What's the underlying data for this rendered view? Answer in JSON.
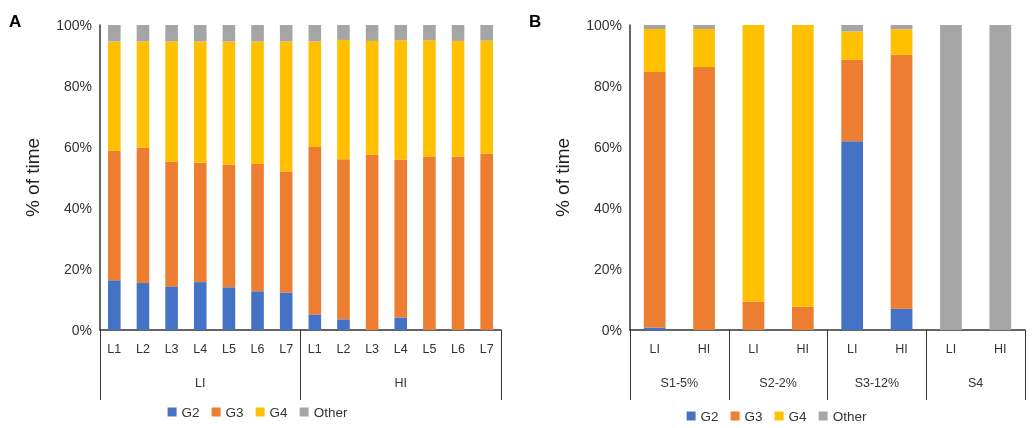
{
  "chart_data": [
    {
      "type": "bar",
      "title": "A",
      "ylabel": "% of time",
      "stacked": true,
      "legend": "bottom",
      "grid": false,
      "categories": [
        "L1",
        "L2",
        "L3",
        "L4",
        "L5",
        "L6",
        "L7",
        "L1",
        "L2",
        "L3",
        "L4",
        "L5",
        "L6",
        "L7"
      ],
      "annotations": [
        "LI",
        "HI"
      ],
      "ylim": [
        0,
        100
      ],
      "yticks": [
        {
          "value": 0,
          "label": "0%"
        },
        {
          "value": 20,
          "label": "20%"
        },
        {
          "value": 40,
          "label": "40%"
        },
        {
          "value": 60,
          "label": "60%"
        },
        {
          "value": 80,
          "label": "80%"
        },
        {
          "value": 100,
          "label": "100%"
        }
      ],
      "series": [
        {
          "name": "G2",
          "color": "#4472c4",
          "values": [
            16.3,
            15.4,
            14.3,
            15.7,
            14.0,
            12.7,
            12.3,
            5.1,
            3.5,
            0,
            4.1,
            0,
            0,
            0
          ]
        },
        {
          "name": "G3",
          "color": "#ed7d31",
          "values": [
            42.5,
            44.4,
            40.9,
            39.1,
            40.2,
            41.7,
            39.7,
            54.9,
            52.5,
            57.5,
            51.8,
            56.9,
            56.8,
            57.9
          ]
        },
        {
          "name": "G4",
          "color": "#ffc000",
          "values": [
            35.8,
            34.8,
            39.4,
            39.8,
            40.4,
            40.2,
            42.6,
            34.6,
            39.1,
            37.3,
            39.1,
            38.1,
            38.0,
            37.0
          ]
        },
        {
          "name": "Other",
          "color": "#a5a5a5",
          "values": [
            5.4,
            5.4,
            5.4,
            5.4,
            5.4,
            5.4,
            5.4,
            5.4,
            4.9,
            5.2,
            5.0,
            5.0,
            5.2,
            5.1
          ]
        }
      ]
    },
    {
      "type": "bar",
      "title": "B",
      "ylabel": "% of time",
      "stacked": true,
      "legend": "bottom",
      "grid": false,
      "categories": [
        "LI",
        "HI",
        "LI",
        "HI",
        "LI",
        "HI",
        "LI",
        "HI"
      ],
      "annotations": [
        "S1-5%",
        "S2-2%",
        "S3-12%",
        "S4"
      ],
      "ylim": [
        0,
        100
      ],
      "yticks": [
        {
          "value": 0,
          "label": "0%"
        },
        {
          "value": 20,
          "label": "20%"
        },
        {
          "value": 40,
          "label": "40%"
        },
        {
          "value": 60,
          "label": "60%"
        },
        {
          "value": 80,
          "label": "80%"
        },
        {
          "value": 100,
          "label": "100%"
        }
      ],
      "series": [
        {
          "name": "G2",
          "color": "#4472c4",
          "values": [
            0.8,
            0,
            0,
            0,
            61.9,
            7.0,
            0,
            0
          ]
        },
        {
          "name": "G3",
          "color": "#ed7d31",
          "values": [
            83.8,
            86.2,
            9.3,
            7.6,
            26.7,
            83.2,
            0,
            0
          ]
        },
        {
          "name": "G4",
          "color": "#ffc000",
          "values": [
            14.1,
            12.5,
            90.7,
            92.4,
            9.3,
            8.4,
            0,
            0
          ]
        },
        {
          "name": "Other",
          "color": "#a5a5a5",
          "values": [
            1.3,
            1.3,
            0,
            0,
            2.1,
            1.4,
            100,
            100
          ]
        }
      ]
    }
  ]
}
